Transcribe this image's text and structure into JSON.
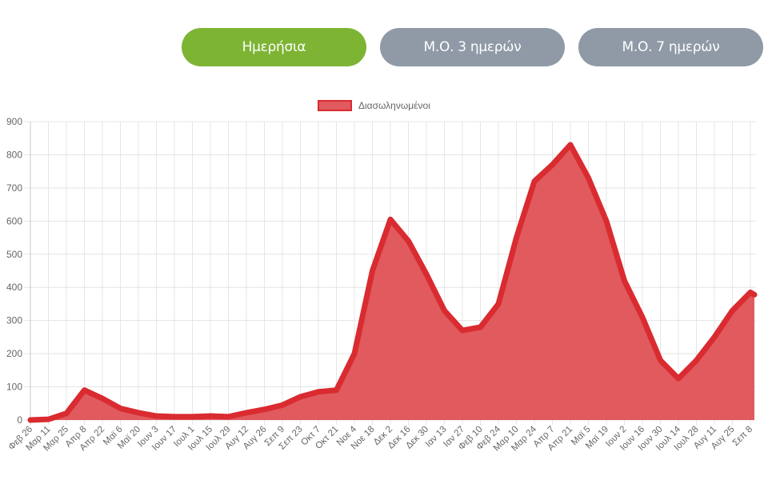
{
  "tabs": [
    {
      "label": "Ημερήσια",
      "active": true
    },
    {
      "label": "Μ.Ο. 3 ημερών",
      "active": false
    },
    {
      "label": "Μ.Ο. 7 ημερών",
      "active": false
    }
  ],
  "colors": {
    "active_tab": "#7db434",
    "inactive_tab": "#8f9aa6",
    "series_fill": "#e05a5e",
    "series_line": "#d92b30",
    "grid": "#e5e5e5",
    "tick_text": "#666666"
  },
  "chart_data": {
    "type": "area",
    "title": "",
    "xlabel": "",
    "ylabel": "",
    "ylim": [
      0,
      900
    ],
    "yticks": [
      0,
      100,
      200,
      300,
      400,
      500,
      600,
      700,
      800,
      900
    ],
    "grid": true,
    "legend_position": "top",
    "categories": [
      "Φεβ 26",
      "Μαρ 11",
      "Μαρ 25",
      "Απρ 8",
      "Απρ 22",
      "Μαϊ 6",
      "Μαϊ 20",
      "Ιουν 3",
      "Ιουν 17",
      "Ιουλ 1",
      "Ιουλ 15",
      "Ιουλ 29",
      "Αυγ 12",
      "Αυγ 26",
      "Σεπ 9",
      "Σεπ 23",
      "Οκτ 7",
      "Οκτ 21",
      "Νοε 4",
      "Νοε 18",
      "Δεκ 2",
      "Δεκ 16",
      "Δεκ 30",
      "Ιαν 13",
      "Ιαν 27",
      "Φεβ 10",
      "Φεβ 24",
      "Μαρ 10",
      "Μαρ 24",
      "Απρ 7",
      "Απρ 21",
      "Μαϊ 5",
      "Μαϊ 19",
      "Ιουν 2",
      "Ιουν 16",
      "Ιουν 30",
      "Ιουλ 14",
      "Ιουλ 28",
      "Αυγ 11",
      "Αυγ 25",
      "Σεπ 8"
    ],
    "series": [
      {
        "name": "Διασωληνωμένοι",
        "values": [
          0,
          2,
          20,
          90,
          65,
          35,
          22,
          12,
          10,
          10,
          12,
          10,
          22,
          32,
          45,
          70,
          85,
          90,
          200,
          450,
          605,
          540,
          440,
          330,
          270,
          280,
          350,
          550,
          720,
          770,
          830,
          730,
          600,
          420,
          310,
          180,
          125,
          180,
          250,
          330,
          385
        ]
      }
    ],
    "last_value": 378
  }
}
